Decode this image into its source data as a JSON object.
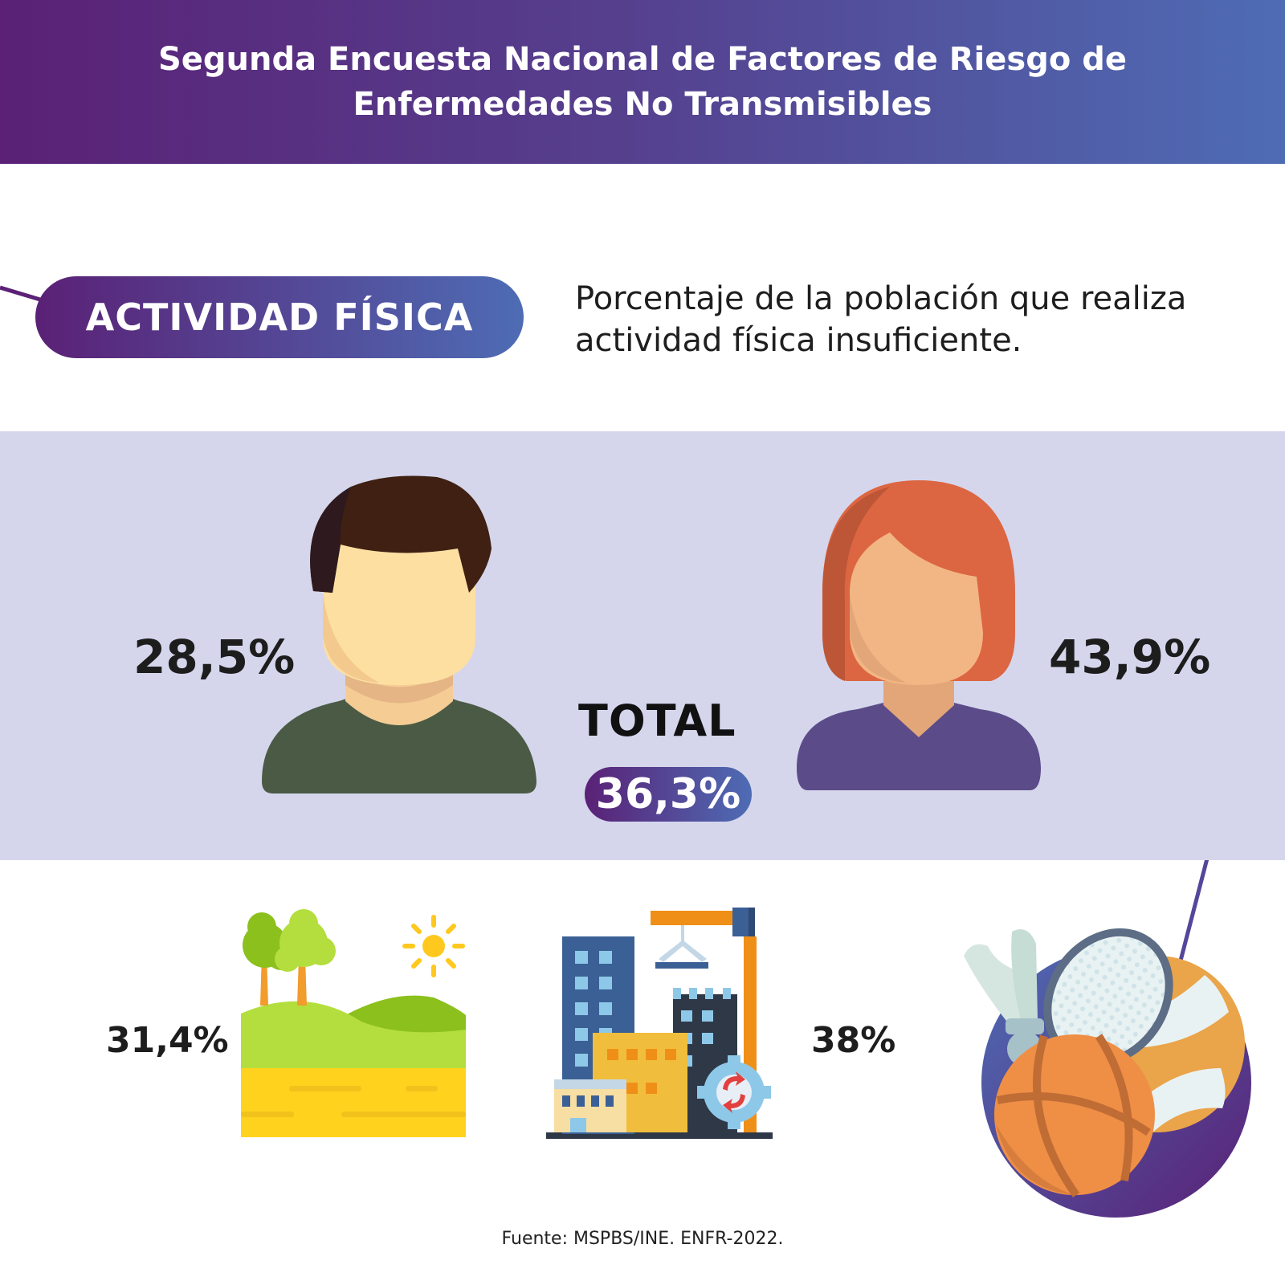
{
  "header": {
    "title": "Segunda Encuesta Nacional de Factores de Riesgo de Enfermedades No Transmisibles"
  },
  "section": {
    "label": "ACTIVIDAD FÍSICA",
    "description": "Porcentaje de la población que realiza actividad física insuficiente."
  },
  "stats": {
    "male": {
      "value": "28,5%",
      "icon": "man-icon"
    },
    "female": {
      "value": "43,9%",
      "icon": "woman-icon"
    },
    "total": {
      "label": "TOTAL",
      "value": "36,3%"
    },
    "rural": {
      "value": "31,4%",
      "icon": "rural-landscape-icon"
    },
    "urban": {
      "value": "38%",
      "icon": "city-buildings-icon"
    }
  },
  "decorations": {
    "sports_icon": "sports-equipment-icon"
  },
  "footer": {
    "source": "Fuente: MSPBS/INE. ENFR-2022."
  },
  "colors": {
    "purple": "#5a2176",
    "blue": "#4e6cb4",
    "band": "#d5d6ec"
  }
}
